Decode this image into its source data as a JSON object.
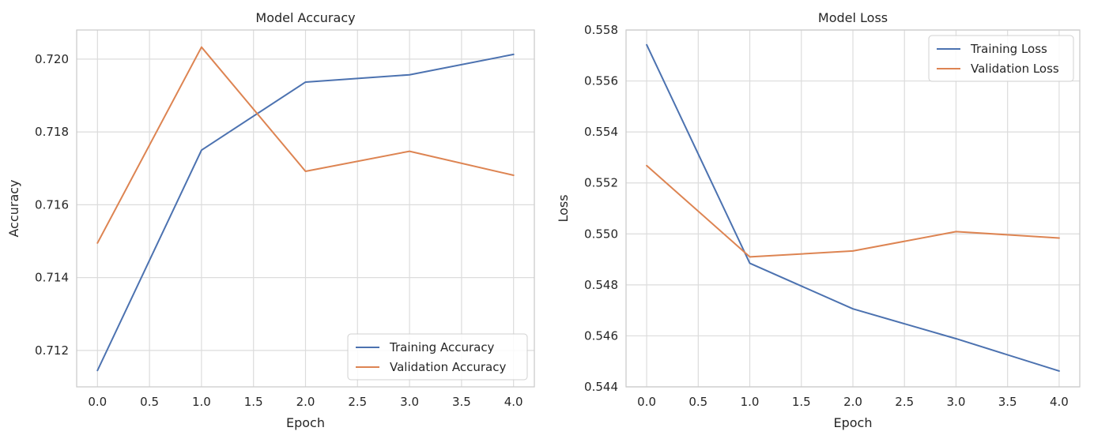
{
  "chart_data": [
    {
      "type": "line",
      "title": "Model Accuracy",
      "xlabel": "Epoch",
      "ylabel": "Accuracy",
      "x": [
        0,
        1,
        2,
        3,
        4
      ],
      "xlim": [
        -0.2,
        4.2
      ],
      "ylim": [
        0.711,
        0.7208
      ],
      "xticks": [
        "0.0",
        "0.5",
        "1.0",
        "1.5",
        "2.0",
        "2.5",
        "3.0",
        "3.5",
        "4.0"
      ],
      "yticks": [
        "0.712",
        "0.714",
        "0.716",
        "0.718",
        "0.720"
      ],
      "grid": true,
      "legend_position": "lower-right",
      "series": [
        {
          "name": "Training Accuracy",
          "color": "#4C72B0",
          "values": [
            0.71145,
            0.7175,
            0.71937,
            0.71957,
            0.72013
          ]
        },
        {
          "name": "Validation Accuracy",
          "color": "#DD8452",
          "values": [
            0.71495,
            0.72033,
            0.71692,
            0.71747,
            0.71681
          ]
        }
      ]
    },
    {
      "type": "line",
      "title": "Model Loss",
      "xlabel": "Epoch",
      "ylabel": "Loss",
      "x": [
        0,
        1,
        2,
        3,
        4
      ],
      "xlim": [
        -0.2,
        4.2
      ],
      "ylim": [
        0.544,
        0.558
      ],
      "xticks": [
        "0.0",
        "0.5",
        "1.0",
        "1.5",
        "2.0",
        "2.5",
        "3.0",
        "3.5",
        "4.0"
      ],
      "yticks": [
        "0.544",
        "0.546",
        "0.548",
        "0.550",
        "0.552",
        "0.554",
        "0.556",
        "0.558"
      ],
      "grid": true,
      "legend_position": "upper-right",
      "series": [
        {
          "name": "Training Loss",
          "color": "#4C72B0",
          "values": [
            0.55742,
            0.54885,
            0.54706,
            0.54589,
            0.54462
          ]
        },
        {
          "name": "Validation Loss",
          "color": "#DD8452",
          "values": [
            0.55268,
            0.5491,
            0.54933,
            0.55009,
            0.54984
          ]
        }
      ]
    }
  ]
}
